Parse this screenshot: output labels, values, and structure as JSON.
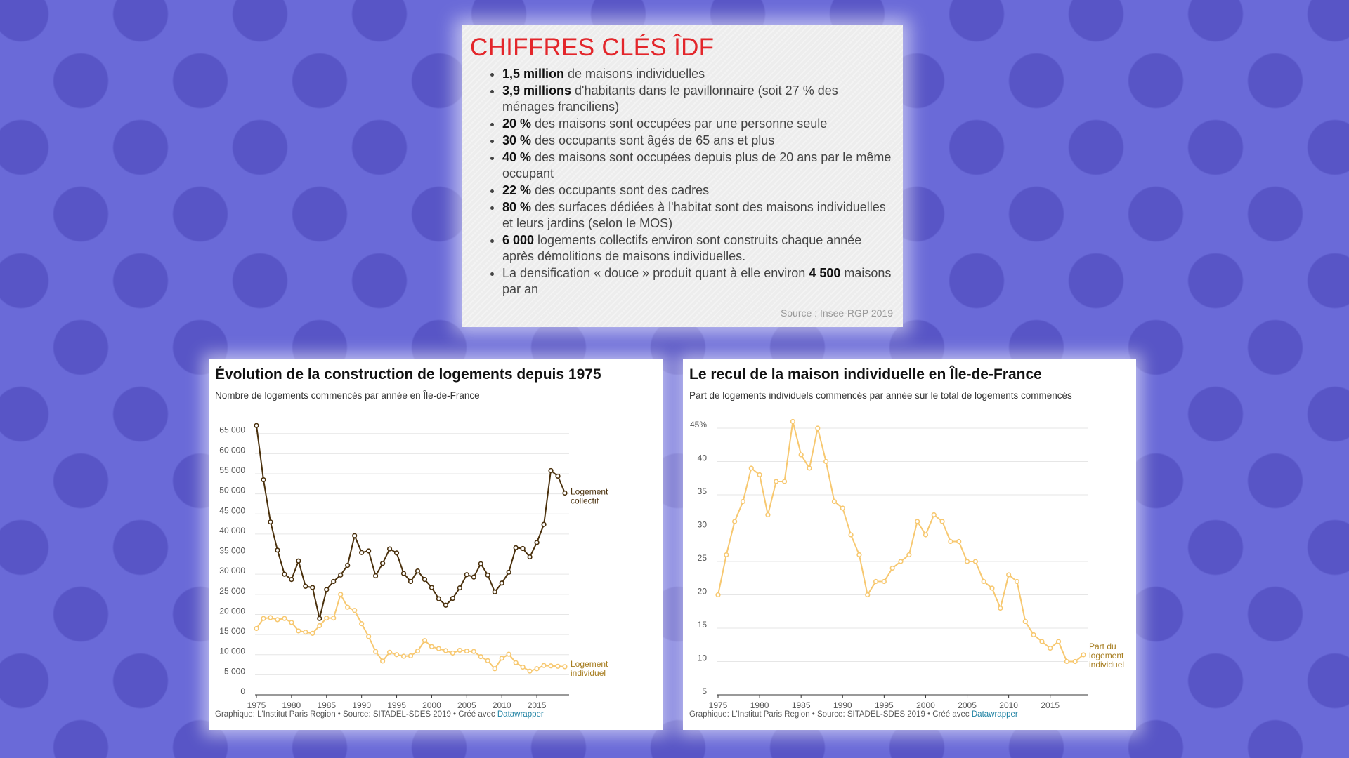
{
  "key_figures": {
    "title": "CHIFFRES CLÉS ÎDF",
    "items": [
      {
        "bold": "1,5 million",
        "text": " de maisons individuelles",
        "tail_bold": "",
        "tail": ""
      },
      {
        "bold": "3,9 millions",
        "text": " d'habitants dans le pavillonnaire (soit 27 % des ménages franciliens)",
        "tail_bold": "",
        "tail": ""
      },
      {
        "bold": "20 %",
        "text": " des maisons sont occupées par une personne seule",
        "tail_bold": "",
        "tail": ""
      },
      {
        "bold": "30 %",
        "text": " des occupants sont âgés de 65 ans et plus",
        "tail_bold": "",
        "tail": ""
      },
      {
        "bold": "40 %",
        "text": " des maisons sont occupées depuis plus de 20 ans par le même occupant",
        "tail_bold": "",
        "tail": ""
      },
      {
        "bold": "22 %",
        "text": " des occupants sont des cadres",
        "tail_bold": "",
        "tail": ""
      },
      {
        "bold": "80 %",
        "text": " des surfaces dédiées à l'habitat sont des maisons individuelles et leurs jardins (selon le MOS)",
        "tail_bold": "",
        "tail": ""
      },
      {
        "bold": "6 000",
        "text": " logements collectifs environ sont construits chaque année après démolitions de maisons individuelles.",
        "tail_bold": "",
        "tail": ""
      },
      {
        "bold": "",
        "text": "La densification « douce » produit quant à elle environ ",
        "tail_bold": "4 500",
        "tail": " maisons par an"
      }
    ],
    "source": "Source : Insee-RGP 2019"
  },
  "colors": {
    "collectif": "#4a300c",
    "individuel": "#f7c870",
    "grid": "#e6e6e6",
    "title_red": "#e3262b"
  },
  "chart_data": [
    {
      "type": "line",
      "title": "Évolution de la construction de logements depuis 1975",
      "subtitle": "Nombre de logements commencés par année en Île-de-France",
      "footer": "Graphique: L'Institut Paris Region • Source: SITADEL-SDES 2019 • Créé avec ",
      "footer_link": "Datawrapper",
      "x_ticks": [
        1975,
        1980,
        1985,
        1990,
        1995,
        2000,
        2005,
        2010,
        2015
      ],
      "y_ticks": [
        0,
        5000,
        10000,
        15000,
        20000,
        25000,
        30000,
        35000,
        40000,
        45000,
        50000,
        55000,
        60000,
        65000
      ],
      "y_tick_labels": [
        "0",
        "5 000",
        "10 000",
        "15 000",
        "20 000",
        "25 000",
        "30 000",
        "35 000",
        "40 000",
        "45 000",
        "50 000",
        "55 000",
        "60 000",
        "65 000"
      ],
      "xlim": [
        1975,
        2019
      ],
      "ylim": [
        0,
        66000
      ],
      "grid": true,
      "x": [
        1975,
        1976,
        1977,
        1978,
        1979,
        1980,
        1981,
        1982,
        1983,
        1984,
        1985,
        1986,
        1987,
        1988,
        1989,
        1990,
        1991,
        1992,
        1993,
        1994,
        1995,
        1996,
        1997,
        1998,
        1999,
        2000,
        2001,
        2002,
        2003,
        2004,
        2005,
        2006,
        2007,
        2008,
        2009,
        2010,
        2011,
        2012,
        2013,
        2014,
        2015,
        2016,
        2017,
        2018,
        2019
      ],
      "series": [
        {
          "name": "Logement collectif",
          "color": "#4a300c",
          "values": [
            67000,
            53500,
            43000,
            36000,
            30000,
            28700,
            33300,
            27000,
            26700,
            19000,
            26200,
            28200,
            29800,
            32200,
            39600,
            35400,
            35800,
            29600,
            32700,
            36300,
            35300,
            30200,
            28200,
            30800,
            28700,
            26700,
            23900,
            22300,
            24000,
            26600,
            29900,
            29300,
            32600,
            29800,
            25600,
            27800,
            30500,
            36600,
            36400,
            34300,
            37900,
            42400,
            55800,
            54400,
            50200
          ]
        },
        {
          "name": "Logement individuel",
          "color": "#f7c870",
          "values": [
            16500,
            19000,
            19200,
            18700,
            19000,
            18000,
            15900,
            15600,
            15300,
            17200,
            19100,
            19100,
            25000,
            21800,
            21000,
            17700,
            14500,
            10800,
            8400,
            10600,
            10000,
            9600,
            9700,
            10900,
            13500,
            12000,
            11500,
            11000,
            10400,
            11100,
            10900,
            10800,
            9500,
            8500,
            6500,
            9100,
            10100,
            8000,
            6900,
            5900,
            6500,
            7300,
            7200,
            7100,
            7000
          ]
        }
      ]
    },
    {
      "type": "line",
      "title": "Le recul de la maison individuelle en Île-de-France",
      "subtitle": "Part de logements individuels commencés par année sur le total de logements commencés",
      "footer": "Graphique: L'Institut Paris Region • Source: SITADEL-SDES 2019 • Créé avec ",
      "footer_link": "Datawrapper",
      "x_ticks": [
        1975,
        1980,
        1985,
        1990,
        1995,
        2000,
        2005,
        2010,
        2015
      ],
      "y_ticks": [
        5,
        10,
        15,
        20,
        25,
        30,
        35,
        40,
        45
      ],
      "y_tick_labels": [
        "5",
        "10",
        "15",
        "20",
        "25",
        "30",
        "35",
        "40",
        "45%"
      ],
      "xlim": [
        1975,
        2019
      ],
      "ylim": [
        5,
        45
      ],
      "grid": true,
      "x": [
        1975,
        1976,
        1977,
        1978,
        1979,
        1980,
        1981,
        1982,
        1983,
        1984,
        1985,
        1986,
        1987,
        1988,
        1989,
        1990,
        1991,
        1992,
        1993,
        1994,
        1995,
        1996,
        1997,
        1998,
        1999,
        2000,
        2001,
        2002,
        2003,
        2004,
        2005,
        2006,
        2007,
        2008,
        2009,
        2010,
        2011,
        2012,
        2013,
        2014,
        2015,
        2016,
        2017,
        2018,
        2019
      ],
      "series": [
        {
          "name": "Part du logement individuel",
          "color": "#f7c870",
          "values": [
            20,
            26,
            31,
            34,
            39,
            38,
            32,
            37,
            37,
            46,
            41,
            39,
            45,
            40,
            34,
            33,
            29,
            26,
            20,
            22,
            22,
            24,
            25,
            26,
            31,
            29,
            32,
            31,
            28,
            28,
            25,
            25,
            22,
            21,
            18,
            23,
            22,
            16,
            14,
            13,
            12,
            13,
            10,
            10,
            11
          ]
        }
      ]
    }
  ]
}
